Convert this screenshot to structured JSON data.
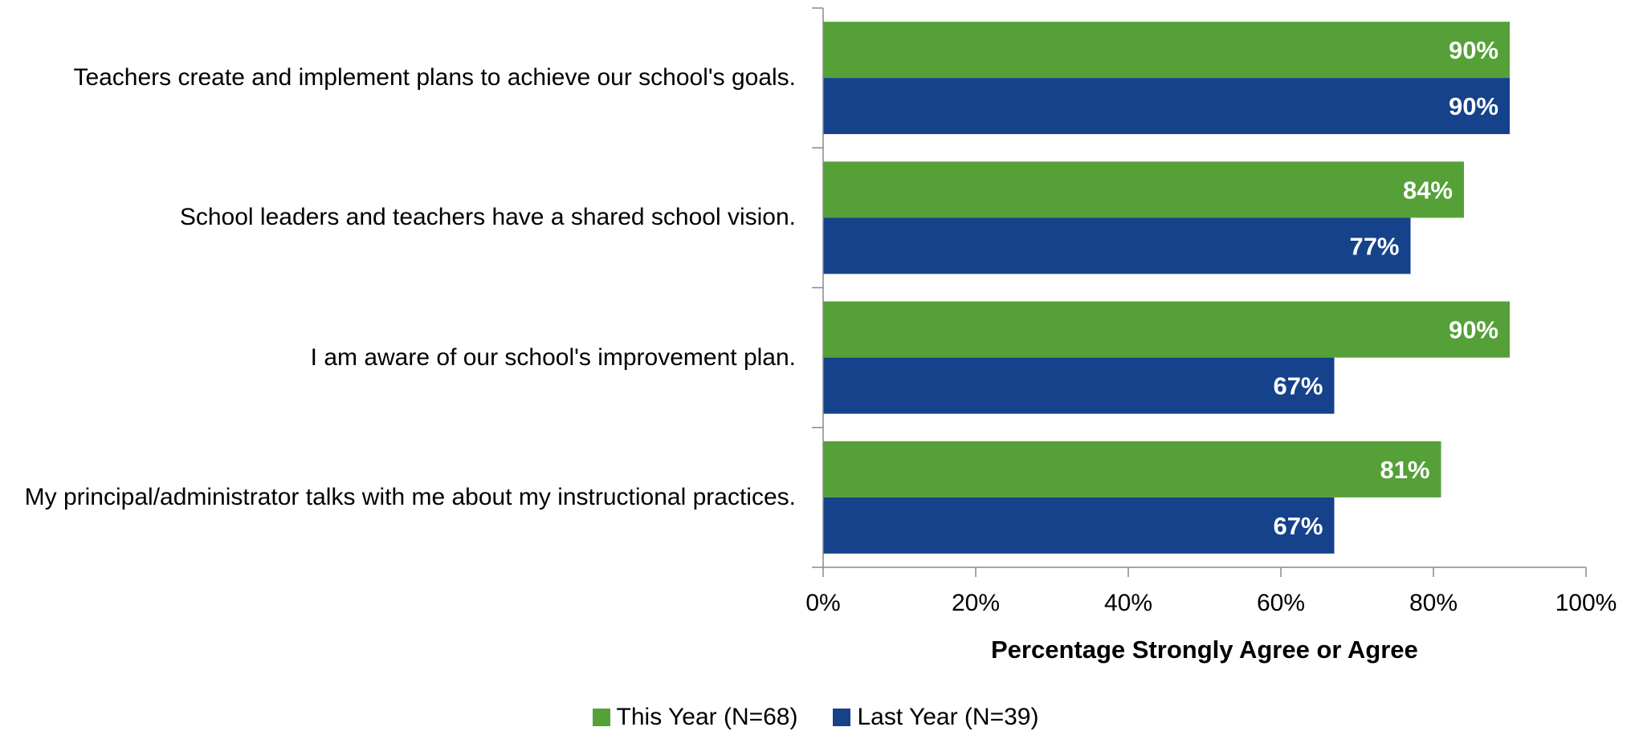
{
  "chart_data": {
    "type": "bar",
    "orientation": "horizontal",
    "categories": [
      "Teachers create and implement plans to achieve our school's goals.",
      "School leaders and teachers have a shared school vision.",
      "I am aware of our school's improvement plan.",
      "My principal/administrator talks with me about my instructional practices."
    ],
    "series": [
      {
        "name": "This Year (N=68)",
        "color": "#56A038",
        "values": [
          90,
          84,
          90,
          81
        ]
      },
      {
        "name": "Last Year (N=39)",
        "color": "#15428B",
        "values": [
          90,
          77,
          67,
          67
        ]
      }
    ],
    "value_labels": [
      [
        "90%",
        "84%",
        "90%",
        "81%"
      ],
      [
        "90%",
        "77%",
        "67%",
        "67%"
      ]
    ],
    "xlabel": "Percentage Strongly Agree or Agree",
    "xlim": [
      0,
      100
    ],
    "xticks": [
      "0%",
      "20%",
      "40%",
      "60%",
      "80%",
      "100%"
    ],
    "grid": false,
    "legend_position": "bottom"
  }
}
